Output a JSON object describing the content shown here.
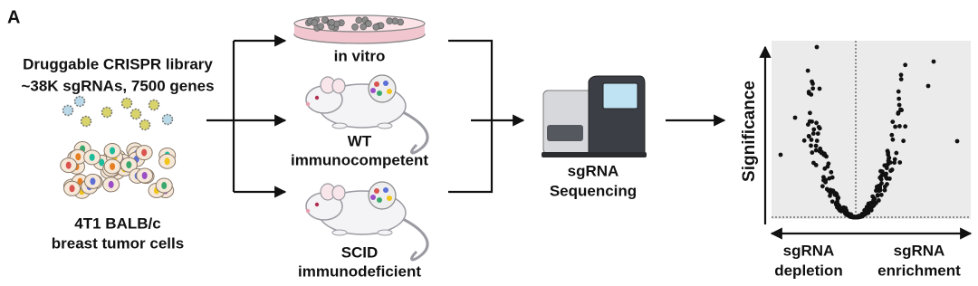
{
  "panel_label": "A",
  "library": {
    "lines": [
      "Druggable CRISPR library",
      "~38K sgRNAs, 7500 genes"
    ]
  },
  "cells": {
    "lines": [
      "4T1 BALB/c",
      "breast tumor cells"
    ]
  },
  "conditions": [
    {
      "lines": [
        "in vitro"
      ]
    },
    {
      "lines": [
        "WT",
        "immunocompetent"
      ]
    },
    {
      "lines": [
        "SCID",
        "immunodeficient"
      ]
    }
  ],
  "sequencing": {
    "lines": [
      "sgRNA",
      "Sequencing"
    ]
  },
  "plot": {
    "y_label": "Significance",
    "x_labels": [
      {
        "lines": [
          "sgRNA",
          "depletion"
        ]
      },
      {
        "lines": [
          "sgRNA",
          "enrichment"
        ]
      }
    ]
  }
}
